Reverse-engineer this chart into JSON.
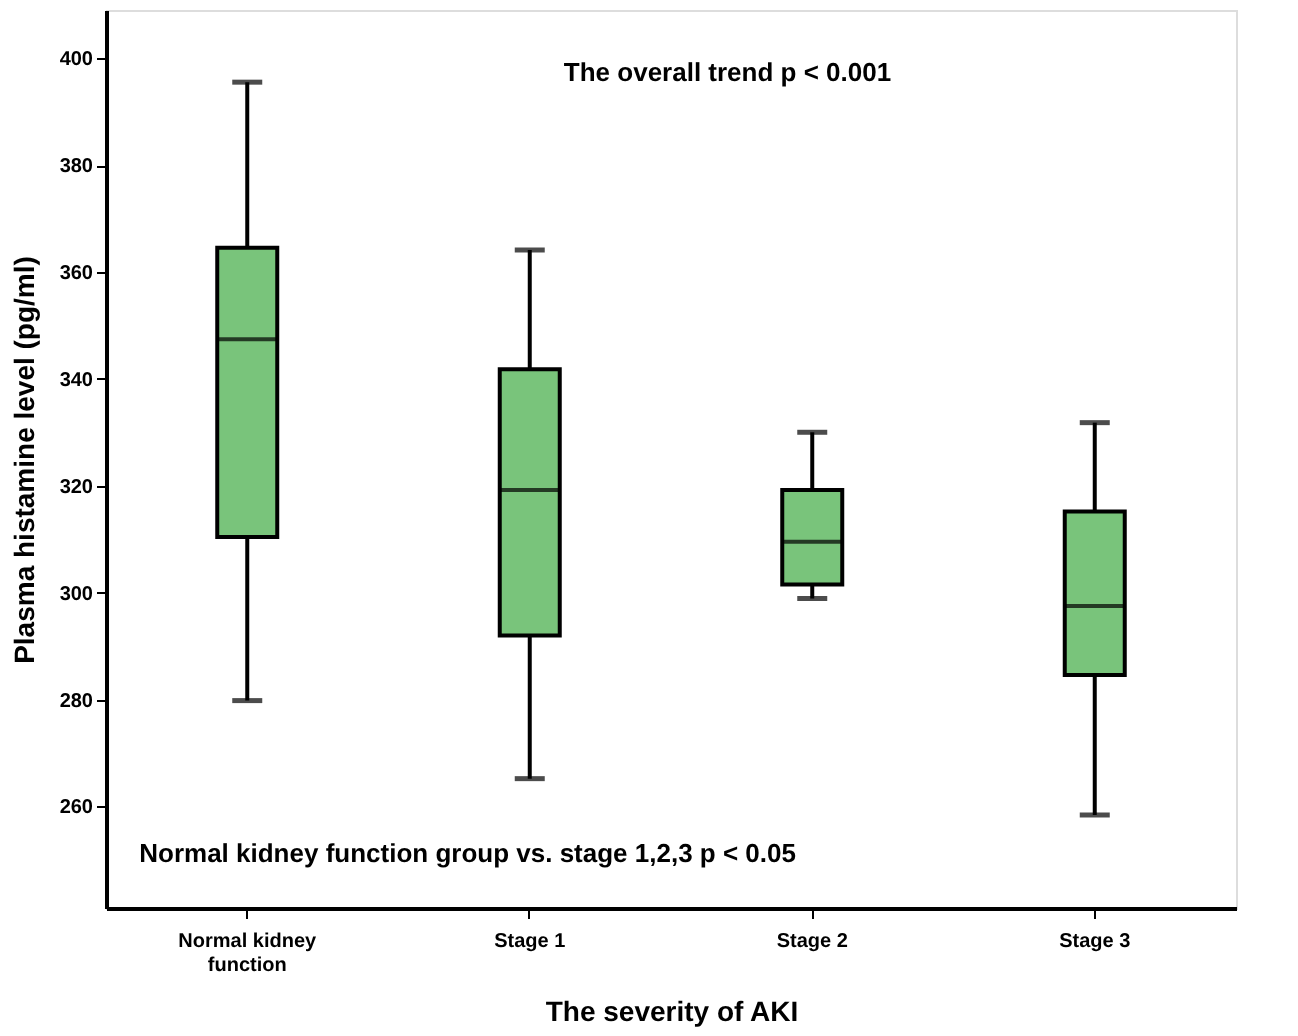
{
  "chart_data": {
    "type": "box",
    "xlabel": "The severity of AKI",
    "ylabel": "Plasma histamine level (pg/ml)",
    "categories": [
      "Normal kidney function",
      "Stage 1",
      "Stage 2",
      "Stage 3"
    ],
    "boxes": [
      {
        "low": 279.8,
        "q1": 310.4,
        "median": 347.4,
        "q3": 364.5,
        "high": 395.5
      },
      {
        "low": 265.2,
        "q1": 292,
        "median": 319.2,
        "q3": 341.8,
        "high": 364.1
      },
      {
        "low": 298.9,
        "q1": 301.5,
        "median": 309.5,
        "q3": 319.2,
        "high": 330
      },
      {
        "low": 258.4,
        "q1": 284.6,
        "median": 297.5,
        "q3": 315.2,
        "high": 331.8
      }
    ],
    "color": "#79c47b",
    "ylim": [
      241,
      409
    ],
    "yticks": [
      260,
      280,
      300,
      320,
      340,
      360,
      380,
      400
    ],
    "grid": false,
    "annotations": [
      "The overall trend  p < 0.001",
      "Normal kidney function group vs. stage 1,2,3      p < 0.05"
    ]
  }
}
